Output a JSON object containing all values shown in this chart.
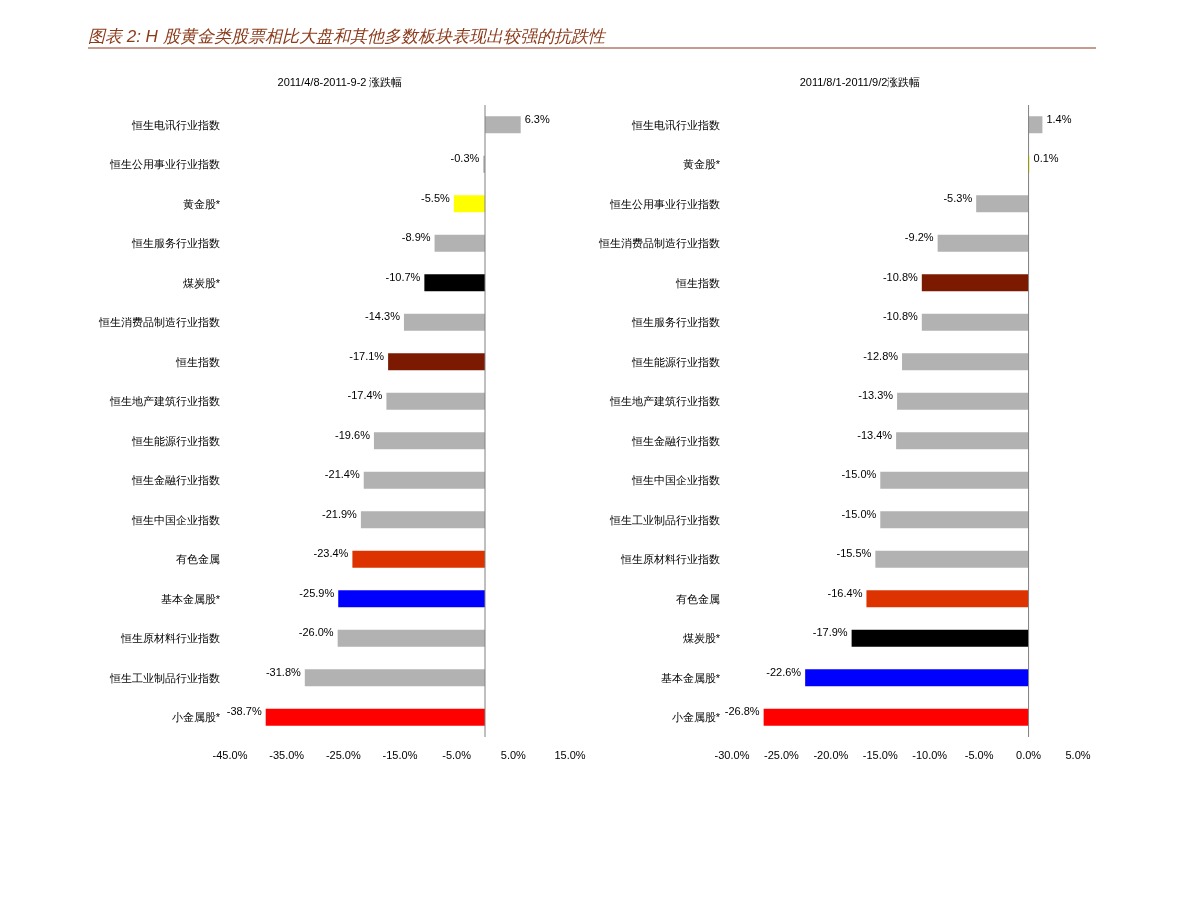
{
  "chart_data": [
    {
      "type": "bar",
      "orientation": "horizontal",
      "title": "2011/4/8-2011-9-2 涨跌幅",
      "annotations": [
        "图表 2: H 股黄金类股票相比大盘和其他多数板块表现出较强的抗跌性"
      ],
      "categories": [
        "恒生电讯行业指数",
        "恒生公用事业行业指数",
        "黄金股*",
        "恒生服务行业指数",
        "煤炭股*",
        "恒生消费品制造行业指数",
        "恒生指数",
        "恒生地产建筑行业指数",
        "恒生能源行业指数",
        "恒生金融行业指数",
        "恒生中国企业指数",
        "有色金属",
        "基本金属股*",
        "恒生原材料行业指数",
        "恒生工业制品行业指数",
        "小金属股*"
      ],
      "values": [
        6.3,
        -0.3,
        -5.5,
        -8.9,
        -10.7,
        -14.3,
        -17.1,
        -17.4,
        -19.6,
        -21.4,
        -21.9,
        -23.4,
        -25.9,
        -26.0,
        -31.8,
        -38.7
      ],
      "value_labels": [
        "6.3%",
        "-0.3%",
        "-5.5%",
        "-8.9%",
        "-10.7%",
        "-14.3%",
        "-17.1%",
        "-17.4%",
        "-19.6%",
        "-21.4%",
        "-21.9%",
        "-23.4%",
        "-25.9%",
        "-26.0%",
        "-31.8%",
        "-38.7%"
      ],
      "colors": [
        "#b2b2b2",
        "#b2b2b2",
        "#ffff00",
        "#b2b2b2",
        "#000000",
        "#b2b2b2",
        "#7b1a00",
        "#b2b2b2",
        "#b2b2b2",
        "#b2b2b2",
        "#b2b2b2",
        "#dd3300",
        "#0000ff",
        "#b2b2b2",
        "#b2b2b2",
        "#ff0000"
      ],
      "xlim": [
        -45,
        15
      ],
      "xticks": [
        {
          "value": -45,
          "label": "-45.0%"
        },
        {
          "value": -35,
          "label": "-35.0%"
        },
        {
          "value": -25,
          "label": "-25.0%"
        },
        {
          "value": -15,
          "label": "-15.0%"
        },
        {
          "value": -5,
          "label": "-5.0%"
        },
        {
          "value": 5,
          "label": "5.0%"
        },
        {
          "value": 15,
          "label": "15.0%"
        }
      ]
    },
    {
      "type": "bar",
      "orientation": "horizontal",
      "title": "2011/8/1-2011/9/2涨跌幅",
      "categories": [
        "恒生电讯行业指数",
        "黄金股*",
        "恒生公用事业行业指数",
        "恒生消费品制造行业指数",
        "恒生指数",
        "恒生服务行业指数",
        "恒生能源行业指数",
        "恒生地产建筑行业指数",
        "恒生金融行业指数",
        "恒生中国企业指数",
        "恒生工业制品行业指数",
        "恒生原材料行业指数",
        "有色金属",
        "煤炭股*",
        "基本金属股*",
        "小金属股*"
      ],
      "values": [
        1.4,
        0.1,
        -5.3,
        -9.2,
        -10.8,
        -10.8,
        -12.8,
        -13.3,
        -13.4,
        -15.0,
        -15.0,
        -15.5,
        -16.4,
        -17.9,
        -22.6,
        -26.8
      ],
      "value_labels": [
        "1.4%",
        "0.1%",
        "-5.3%",
        "-9.2%",
        "-10.8%",
        "-10.8%",
        "-12.8%",
        "-13.3%",
        "-13.4%",
        "-15.0%",
        "-15.0%",
        "-15.5%",
        "-16.4%",
        "-17.9%",
        "-22.6%",
        "-26.8%"
      ],
      "colors": [
        "#b2b2b2",
        "#ffff00",
        "#b2b2b2",
        "#b2b2b2",
        "#7b1a00",
        "#b2b2b2",
        "#b2b2b2",
        "#b2b2b2",
        "#b2b2b2",
        "#b2b2b2",
        "#b2b2b2",
        "#b2b2b2",
        "#dd3300",
        "#000000",
        "#0000ff",
        "#ff0000"
      ],
      "xlim": [
        -30,
        5
      ],
      "xticks": [
        {
          "value": -30,
          "label": "-30.0%"
        },
        {
          "value": -25,
          "label": "-25.0%"
        },
        {
          "value": -20,
          "label": "-20.0%"
        },
        {
          "value": -15,
          "label": "-15.0%"
        },
        {
          "value": -10,
          "label": "-10.0%"
        },
        {
          "value": -5,
          "label": "-5.0%"
        },
        {
          "value": 0,
          "label": "0.0%"
        },
        {
          "value": 5,
          "label": "5.0%"
        }
      ]
    }
  ]
}
